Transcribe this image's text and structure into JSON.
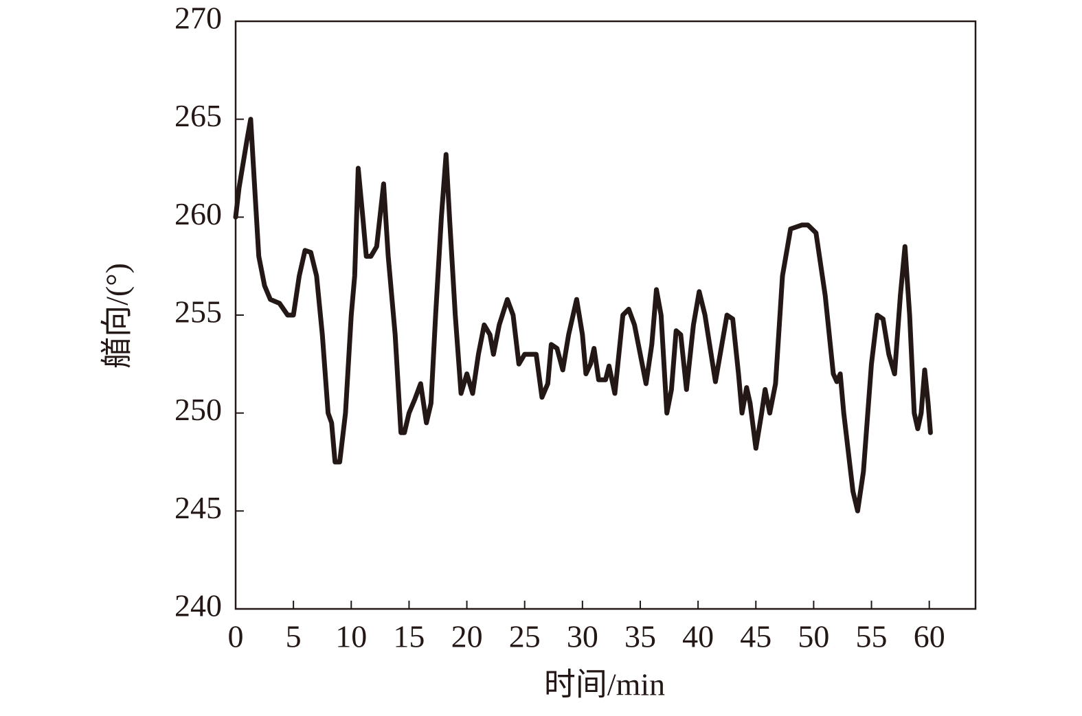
{
  "chart_data": {
    "type": "line",
    "xlabel": "时间/min",
    "ylabel": "艏向/(°)",
    "color": "#231815",
    "x": [
      0,
      0.3,
      1,
      1.3,
      1.6,
      2,
      2.5,
      3,
      3.8,
      4.5,
      5,
      5.5,
      6,
      6.5,
      7,
      7.5,
      8,
      8.3,
      8.6,
      9,
      9.5,
      10,
      10.3,
      10.6,
      11,
      11.3,
      11.7,
      12.2,
      12.8,
      13.2,
      13.8,
      14.3,
      14.6,
      15,
      15.5,
      16,
      16.5,
      16.9,
      17.3,
      17.8,
      18.2,
      18.5,
      19,
      19.5,
      20,
      20.5,
      21,
      21.5,
      22,
      22.3,
      22.8,
      23.5,
      24,
      24.5,
      25,
      25.5,
      26,
      26.5,
      27,
      27.3,
      27.8,
      28.3,
      28.8,
      29.5,
      30,
      30.3,
      30.7,
      31,
      31.4,
      32,
      32.3,
      32.8,
      33.5,
      34,
      34.5,
      35,
      35.5,
      36,
      36.4,
      36.8,
      37.3,
      37.7,
      38.1,
      38.5,
      39,
      39.6,
      40.1,
      40.6,
      41.5,
      42.5,
      43,
      43.5,
      43.8,
      44.2,
      44.5,
      45,
      45.5,
      45.8,
      46.2,
      46.7,
      47.3,
      48,
      49,
      49.5,
      50.2,
      51,
      51.7,
      52,
      52.3,
      52.6,
      53.4,
      53.8,
      54.3,
      55,
      55.5,
      56,
      56.5,
      57,
      57.5,
      57.9,
      58.3,
      58.7,
      59,
      59.3,
      59.6,
      59.9,
      60.1
    ],
    "values": [
      260,
      261.5,
      264,
      265,
      262,
      258,
      256.5,
      255.8,
      255.6,
      255,
      255,
      257,
      258.3,
      258.2,
      257,
      254,
      250,
      249.5,
      247.5,
      247.5,
      250,
      255,
      257,
      262.5,
      260,
      258,
      258,
      258.5,
      261.7,
      258,
      254,
      249,
      249,
      250,
      250.7,
      251.5,
      249.5,
      250.5,
      255,
      260,
      263.2,
      260,
      255,
      251,
      252,
      251,
      253,
      254.5,
      254,
      253,
      254.5,
      255.8,
      255,
      252.5,
      253,
      253,
      253,
      250.8,
      251.5,
      253.5,
      253.3,
      252.2,
      254,
      255.8,
      254,
      252,
      252.5,
      253.3,
      251.7,
      251.7,
      252.4,
      251,
      255,
      255.3,
      254.5,
      253,
      251.5,
      253.5,
      256.3,
      255,
      250,
      251.2,
      254.2,
      254,
      251.2,
      254.5,
      256.2,
      255,
      251.6,
      255,
      254.8,
      252,
      250,
      251.3,
      250.5,
      248.2,
      250,
      251.2,
      250,
      251.5,
      257,
      259.4,
      259.6,
      259.6,
      259.2,
      256,
      252,
      251.6,
      252,
      250,
      246,
      245,
      247,
      252.5,
      255,
      254.8,
      253,
      252,
      256,
      258.5,
      255,
      250,
      249.2,
      250,
      252.2,
      250.5,
      249
    ],
    "xlim": [
      0,
      64
    ],
    "xticks": [
      0,
      5,
      10,
      15,
      20,
      25,
      30,
      35,
      40,
      45,
      50,
      55,
      60
    ],
    "ylim": [
      240,
      270
    ],
    "yticks": [
      240,
      245,
      250,
      255,
      260,
      265,
      270
    ],
    "grid": false
  }
}
